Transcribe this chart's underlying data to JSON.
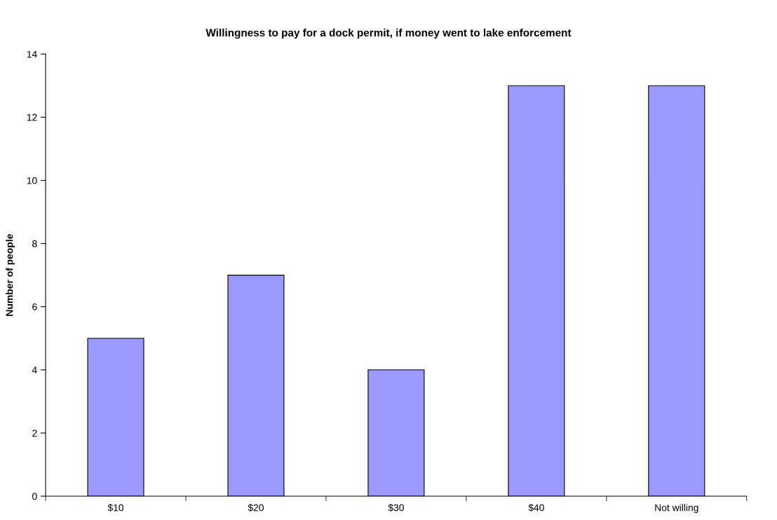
{
  "chart_data": {
    "type": "bar",
    "title": "Willingness to pay for a dock permit, if money went to lake enforcement",
    "ylabel": "Number of people",
    "categories": [
      "$10",
      "$20",
      "$30",
      "$40",
      "Not willing"
    ],
    "values": [
      5,
      7,
      4,
      13,
      13
    ],
    "color": "#9999ff",
    "ylim": [
      0,
      14
    ],
    "yticks": [
      0,
      2,
      4,
      6,
      8,
      10,
      12,
      14
    ],
    "grid": false,
    "legend": false
  }
}
